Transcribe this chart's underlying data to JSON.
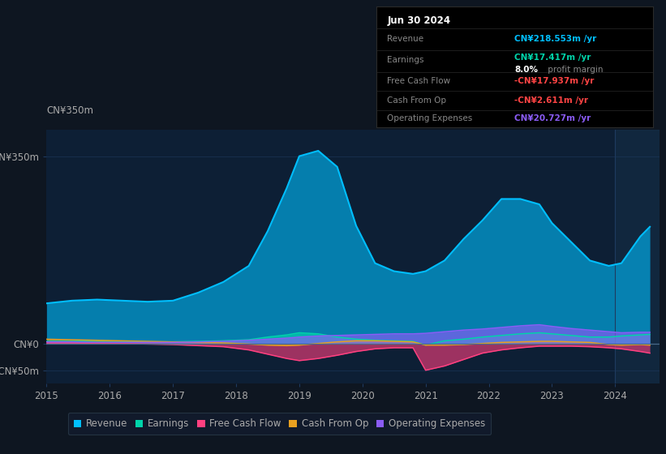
{
  "bg_color": "#0e1621",
  "plot_bg_color": "#0d1f35",
  "grid_color": "#1e3a5f",
  "text_color": "#aaaaaa",
  "title_color": "#ffffff",
  "ylim": [
    -75,
    400
  ],
  "years": [
    2015.0,
    2015.4,
    2015.8,
    2016.2,
    2016.6,
    2017.0,
    2017.4,
    2017.8,
    2018.2,
    2018.5,
    2018.8,
    2019.0,
    2019.3,
    2019.6,
    2019.9,
    2020.2,
    2020.5,
    2020.8,
    2021.0,
    2021.3,
    2021.6,
    2021.9,
    2022.2,
    2022.5,
    2022.8,
    2023.0,
    2023.3,
    2023.6,
    2023.9,
    2024.1,
    2024.4,
    2024.55
  ],
  "revenue": [
    75,
    80,
    82,
    80,
    78,
    80,
    95,
    115,
    145,
    210,
    290,
    350,
    360,
    330,
    220,
    150,
    135,
    130,
    135,
    155,
    195,
    230,
    270,
    270,
    260,
    225,
    190,
    155,
    145,
    150,
    200,
    218
  ],
  "earnings": [
    4,
    4,
    5,
    4,
    3,
    3,
    4,
    5,
    7,
    12,
    16,
    20,
    18,
    12,
    8,
    6,
    5,
    4,
    -3,
    5,
    8,
    12,
    15,
    18,
    20,
    18,
    15,
    12,
    12,
    14,
    16,
    17
  ],
  "free_cash_flow": [
    1,
    1,
    0,
    0,
    -1,
    -2,
    -4,
    -6,
    -12,
    -20,
    -28,
    -32,
    -28,
    -22,
    -15,
    -10,
    -8,
    -8,
    -50,
    -42,
    -30,
    -18,
    -12,
    -8,
    -5,
    -5,
    -5,
    -6,
    -8,
    -10,
    -15,
    -18
  ],
  "cash_from_op": [
    8,
    7,
    6,
    5,
    4,
    3,
    2,
    1,
    -1,
    -3,
    -4,
    -3,
    0,
    3,
    5,
    5,
    4,
    3,
    -3,
    -3,
    -2,
    0,
    2,
    3,
    4,
    4,
    3,
    2,
    -2,
    -3,
    -2,
    -3
  ],
  "operating_expenses": [
    3,
    3,
    2,
    2,
    2,
    2,
    3,
    4,
    6,
    8,
    10,
    12,
    14,
    15,
    16,
    17,
    18,
    18,
    19,
    22,
    25,
    27,
    30,
    33,
    35,
    32,
    28,
    25,
    22,
    20,
    21,
    21
  ],
  "revenue_color": "#00bfff",
  "earnings_color": "#00d4aa",
  "free_cash_flow_color": "#ff4080",
  "cash_from_op_color": "#e8a020",
  "operating_expenses_color": "#8b5cf6",
  "info_box": {
    "date": "Jun 30 2024",
    "revenue_val": "CN¥218.553m",
    "earnings_val": "CN¥17.417m",
    "profit_margin": "8.0%",
    "fcf_val": "-CN¥17.937m",
    "cash_from_op_val": "-CN¥2.611m",
    "op_exp_val": "CN¥20.727m"
  },
  "legend_entries": [
    "Revenue",
    "Earnings",
    "Free Cash Flow",
    "Cash From Op",
    "Operating Expenses"
  ],
  "legend_colors": [
    "#00bfff",
    "#00d4aa",
    "#ff4080",
    "#e8a020",
    "#8b5cf6"
  ],
  "x_ticks": [
    2015,
    2016,
    2017,
    2018,
    2019,
    2020,
    2021,
    2022,
    2023,
    2024
  ]
}
